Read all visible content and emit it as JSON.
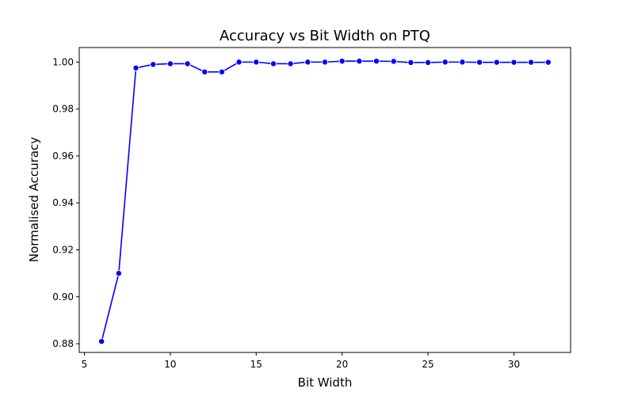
{
  "chart_data": {
    "type": "line",
    "title": "Accuracy vs Bit Width on PTQ",
    "xlabel": "Bit Width",
    "ylabel": "Normalised Accuracy",
    "xlim": [
      4.7,
      33.3
    ],
    "ylim": [
      0.8763,
      1.0062
    ],
    "xticks": [
      5,
      10,
      15,
      20,
      25,
      30
    ],
    "yticks": [
      0.88,
      0.9,
      0.92,
      0.94,
      0.96,
      0.98,
      1.0
    ],
    "ytick_labels": [
      "0.88",
      "0.90",
      "0.92",
      "0.94",
      "0.96",
      "0.98",
      "1.00"
    ],
    "grid": false,
    "series": [
      {
        "color": "#0000ff",
        "marker": "circle",
        "x": [
          6,
          7,
          8,
          9,
          10,
          11,
          12,
          13,
          14,
          15,
          16,
          17,
          18,
          19,
          20,
          21,
          22,
          23,
          24,
          25,
          26,
          27,
          28,
          29,
          30,
          31,
          32
        ],
        "y": [
          0.881,
          0.91,
          0.9975,
          0.999,
          0.9993,
          0.9993,
          0.9958,
          0.9958,
          1.0,
          1.0,
          0.9993,
          0.9993,
          1.0,
          1.0,
          1.0004,
          1.0004,
          1.0004,
          1.0003,
          0.9998,
          0.9998,
          1.0,
          1.0,
          0.9999,
          0.9999,
          0.9999,
          0.9999,
          0.9999
        ]
      }
    ]
  }
}
